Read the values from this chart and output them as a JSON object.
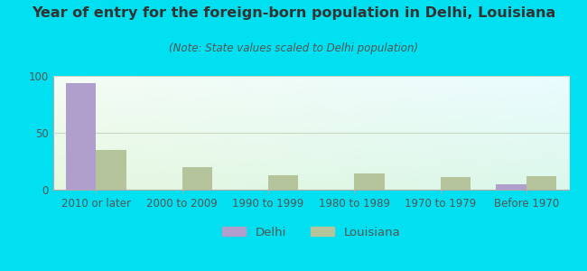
{
  "title": "Year of entry for the foreign-born population in Delhi, Louisiana",
  "subtitle": "(Note: State values scaled to Delhi population)",
  "categories": [
    "2010 or later",
    "2000 to 2009",
    "1990 to 1999",
    "1980 to 1989",
    "1970 to 1979",
    "Before 1970"
  ],
  "delhi_values": [
    94,
    0,
    0,
    0,
    0,
    5
  ],
  "louisiana_values": [
    35,
    20,
    13,
    14,
    11,
    12
  ],
  "delhi_color": "#b09fcc",
  "louisiana_color": "#b5c49a",
  "background_outer": "#00e0f0",
  "ylim": [
    0,
    100
  ],
  "yticks": [
    0,
    50,
    100
  ],
  "title_fontsize": 11.5,
  "subtitle_fontsize": 8.5,
  "tick_fontsize": 8.5,
  "legend_fontsize": 9.5,
  "bar_width": 0.35,
  "grid_color": "#c8d8c0",
  "axis_line_color": "#aaaaaa",
  "text_color": "#555555",
  "title_color": "#333333"
}
